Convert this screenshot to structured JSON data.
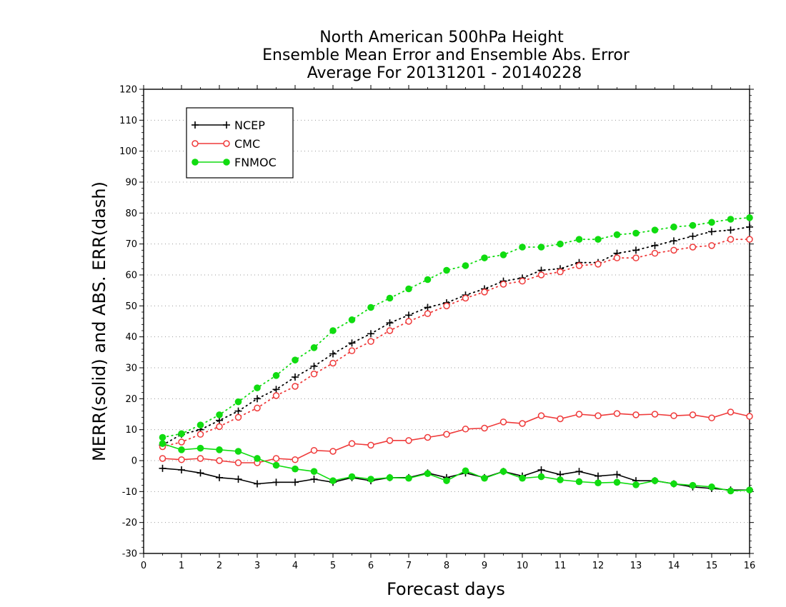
{
  "chart_data": {
    "type": "line",
    "title_lines": [
      "North American 500hPa Height",
      "Ensemble Mean Error and Ensemble Abs. Error",
      "Average For 20131201 - 20140228"
    ],
    "xlabel": "Forecast days",
    "ylabel": "MERR(solid) and ABS. ERR(dash)",
    "xlim": [
      0,
      16
    ],
    "ylim": [
      -30,
      120
    ],
    "x_ticks": [
      0,
      1,
      2,
      3,
      4,
      5,
      6,
      7,
      8,
      9,
      10,
      11,
      12,
      13,
      14,
      15,
      16
    ],
    "y_ticks": [
      -30,
      -20,
      -10,
      0,
      10,
      20,
      30,
      40,
      50,
      60,
      70,
      80,
      90,
      100,
      110,
      120
    ],
    "grid": "horizontal dotted",
    "legend_position": "top-left",
    "x": [
      0.5,
      1,
      1.5,
      2,
      2.5,
      3,
      3.5,
      4,
      4.5,
      5,
      5.5,
      6,
      6.5,
      7,
      7.5,
      8,
      8.5,
      9,
      9.5,
      10,
      10.5,
      11,
      11.5,
      12,
      12.5,
      13,
      13.5,
      14,
      14.5,
      15,
      15.5,
      16
    ],
    "series": [
      {
        "name": "NCEP",
        "color": "#000000",
        "marker": "plus",
        "merr": [
          -2.5,
          -3,
          -4,
          -5.5,
          -6,
          -7.5,
          -7,
          -7,
          -6,
          -7,
          -5.5,
          -6.5,
          -5.5,
          -5.5,
          -4,
          -5.5,
          -4,
          -5.5,
          -3.5,
          -5,
          -3,
          -4.5,
          -3.5,
          -5,
          -4.5,
          -6.5,
          -6.5,
          -7.5,
          -8.5,
          -9,
          -9.5,
          -9.5
        ],
        "abserr": [
          5,
          8.5,
          10,
          13,
          16,
          20,
          23,
          27,
          30.5,
          34.5,
          38,
          41,
          44.5,
          47,
          49.5,
          51,
          53.5,
          55.5,
          58,
          59,
          61.5,
          62,
          64,
          64,
          67,
          68,
          69.5,
          71,
          72.5,
          74,
          74.5,
          75.5
        ]
      },
      {
        "name": "CMC",
        "color": "#ef3a3a",
        "marker": "open-circle",
        "merr": [
          0.7,
          0.3,
          0.7,
          0,
          -0.7,
          -0.7,
          0.7,
          0.3,
          3.3,
          3,
          5.5,
          5,
          6.5,
          6.5,
          7.5,
          8.5,
          10.2,
          10.5,
          12.5,
          12,
          14.5,
          13.5,
          15,
          14.5,
          15.2,
          14.8,
          15,
          14.5,
          14.8,
          13.8,
          15.7,
          14.3
        ],
        "abserr": [
          4.5,
          6,
          8.5,
          11,
          14,
          17,
          21,
          24,
          28,
          31.5,
          35.5,
          38.5,
          42,
          45,
          47.5,
          50,
          52.5,
          54.5,
          57,
          58,
          60,
          61,
          63,
          63.5,
          65.5,
          65.5,
          67,
          68,
          69,
          69.5,
          71.5,
          71.5
        ]
      },
      {
        "name": "FNMOC",
        "color": "#10dc10",
        "marker": "filled-circle",
        "merr": [
          5.5,
          3.5,
          4,
          3.5,
          3,
          0.7,
          -1.5,
          -2.7,
          -3.5,
          -6.5,
          -5.2,
          -6,
          -5.5,
          -5.7,
          -4.2,
          -6.5,
          -3.3,
          -5.7,
          -3.5,
          -5.7,
          -5.2,
          -6.2,
          -6.8,
          -7.2,
          -7,
          -7.8,
          -6.5,
          -7.5,
          -8,
          -8.5,
          -9.8,
          -9.5
        ],
        "abserr": [
          7.5,
          8.7,
          11.5,
          14.8,
          19,
          23.5,
          27.5,
          32.5,
          36.5,
          42,
          45.5,
          49.5,
          52.5,
          55.5,
          58.5,
          61.5,
          63,
          65.5,
          66.5,
          69,
          69,
          70,
          71.5,
          71.5,
          73,
          73.5,
          74.5,
          75.5,
          76,
          77,
          78,
          78.5
        ]
      }
    ]
  }
}
